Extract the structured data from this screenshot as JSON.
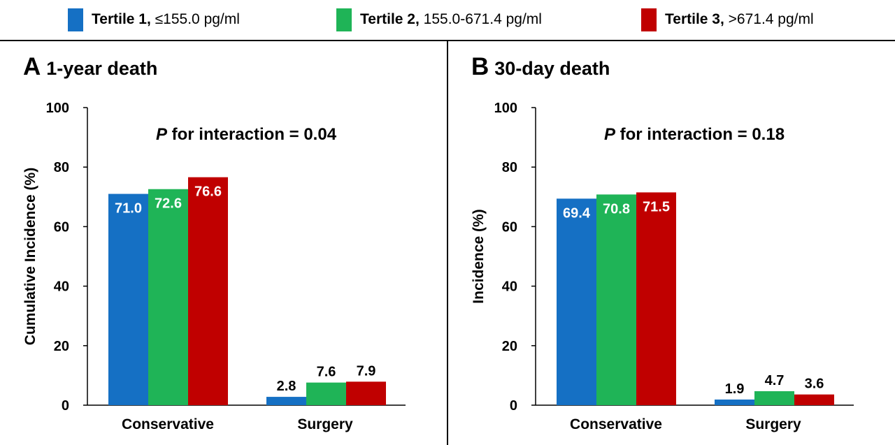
{
  "legend": {
    "items": [
      {
        "name": "Tertile 1,",
        "range": "≤155.0 pg/ml",
        "color": "#1570c4"
      },
      {
        "name": "Tertile 2,",
        "range": "155.0-671.4 pg/ml",
        "color": "#1fb457"
      },
      {
        "name": "Tertile 3,",
        "range": ">671.4 pg/ml",
        "color": "#c00000"
      }
    ]
  },
  "chart_data": [
    {
      "type": "bar",
      "panel_letter": "A",
      "title": "1-year death",
      "annotation_italic": "P",
      "annotation_rest": " for interaction = 0.04",
      "ylabel": "Cumulative Incidence (%)",
      "xlabel": "",
      "ylim": [
        0,
        100
      ],
      "yticks": [
        0,
        20,
        40,
        60,
        80,
        100
      ],
      "categories": [
        "Conservative",
        "Surgery"
      ],
      "series": [
        {
          "name": "Tertile 1",
          "color": "#1570c4",
          "values": [
            71.0,
            2.8
          ],
          "labels": [
            "71.0",
            "2.8"
          ]
        },
        {
          "name": "Tertile 2",
          "color": "#1fb457",
          "values": [
            72.6,
            7.6
          ],
          "labels": [
            "72.6",
            "7.6"
          ]
        },
        {
          "name": "Tertile 3",
          "color": "#c00000",
          "values": [
            76.6,
            7.9
          ],
          "labels": [
            "76.6",
            "7.9"
          ]
        }
      ]
    },
    {
      "type": "bar",
      "panel_letter": "B",
      "title": "30-day death",
      "annotation_italic": "P",
      "annotation_rest": " for interaction = 0.18",
      "ylabel": "Incidence (%)",
      "xlabel": "",
      "ylim": [
        0,
        100
      ],
      "yticks": [
        0,
        20,
        40,
        60,
        80,
        100
      ],
      "categories": [
        "Conservative",
        "Surgery"
      ],
      "series": [
        {
          "name": "Tertile 1",
          "color": "#1570c4",
          "values": [
            69.4,
            1.9
          ],
          "labels": [
            "69.4",
            "1.9"
          ]
        },
        {
          "name": "Tertile 2",
          "color": "#1fb457",
          "values": [
            70.8,
            4.7
          ],
          "labels": [
            "70.8",
            "4.7"
          ]
        },
        {
          "name": "Tertile 3",
          "color": "#c00000",
          "values": [
            71.5,
            3.6
          ],
          "labels": [
            "71.5",
            "3.6"
          ]
        }
      ]
    }
  ]
}
